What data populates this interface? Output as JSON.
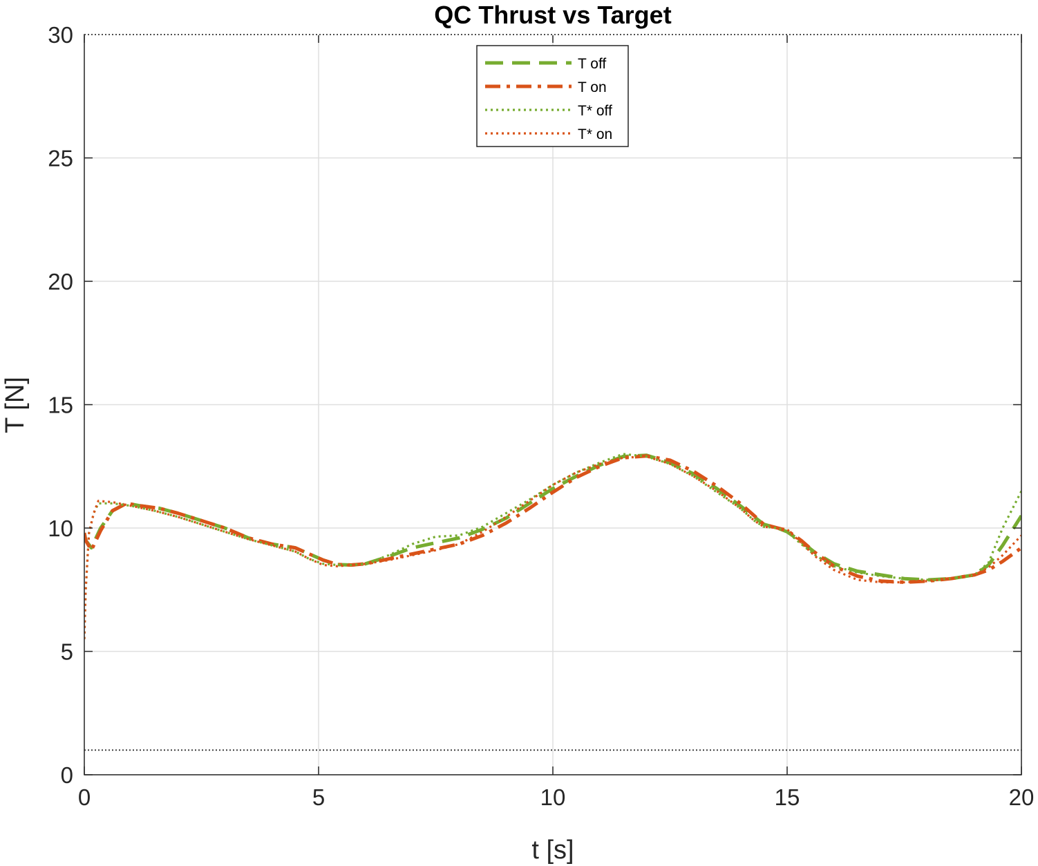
{
  "chart_data": {
    "type": "line",
    "title": "QC Thrust vs Target",
    "xlabel": "t [s]",
    "ylabel": "T [N]",
    "xlim": [
      0,
      20
    ],
    "ylim": [
      0,
      30
    ],
    "xticks": [
      "0",
      "5",
      "10",
      "15",
      "20"
    ],
    "yticks": [
      "0",
      "5",
      "10",
      "15",
      "20",
      "25",
      "30"
    ],
    "grid": true,
    "legend_position": "top-center",
    "reference_lines": [
      {
        "y": 30,
        "style": "dotted",
        "color": "#333333"
      },
      {
        "y": 1,
        "style": "dotted",
        "color": "#333333"
      }
    ],
    "series": [
      {
        "name": "T off",
        "color": "#77AC30",
        "dash": "dashed",
        "x": [
          0.0,
          0.03,
          0.15,
          0.35,
          0.6,
          0.9,
          1.2,
          1.6,
          2.0,
          2.5,
          3.0,
          3.5,
          4.0,
          4.5,
          4.8,
          5.1,
          5.4,
          5.7,
          6.0,
          6.5,
          7.0,
          7.5,
          8.0,
          8.5,
          9.0,
          9.5,
          10.0,
          10.5,
          11.0,
          11.5,
          12.0,
          12.5,
          13.0,
          13.5,
          14.0,
          14.3,
          14.5,
          14.8,
          15.0,
          15.3,
          15.6,
          16.0,
          16.5,
          17.0,
          17.5,
          18.0,
          18.5,
          19.0,
          19.3,
          19.6,
          20.0
        ],
        "y": [
          9.8,
          9.5,
          9.2,
          10.0,
          10.7,
          11.0,
          10.9,
          10.8,
          10.6,
          10.3,
          10.0,
          9.6,
          9.35,
          9.2,
          8.95,
          8.7,
          8.52,
          8.5,
          8.55,
          8.85,
          9.2,
          9.4,
          9.6,
          9.95,
          10.4,
          11.0,
          11.6,
          12.1,
          12.55,
          12.9,
          12.95,
          12.65,
          12.2,
          11.6,
          10.9,
          10.45,
          10.15,
          10.0,
          9.85,
          9.45,
          9.0,
          8.55,
          8.25,
          8.1,
          7.95,
          7.9,
          7.95,
          8.1,
          8.5,
          9.3,
          10.5
        ]
      },
      {
        "name": "T on",
        "color": "#D95319",
        "dash": "dashdot",
        "x": [
          0.0,
          0.03,
          0.15,
          0.35,
          0.6,
          0.9,
          1.2,
          1.6,
          2.0,
          2.5,
          3.0,
          3.5,
          4.0,
          4.5,
          4.8,
          5.1,
          5.4,
          5.7,
          6.0,
          6.5,
          7.0,
          7.5,
          8.0,
          8.5,
          9.0,
          9.5,
          10.0,
          10.5,
          11.0,
          11.5,
          12.0,
          12.5,
          13.0,
          13.5,
          14.0,
          14.3,
          14.5,
          14.8,
          15.0,
          15.3,
          15.6,
          16.0,
          16.5,
          17.0,
          17.5,
          18.0,
          18.5,
          19.0,
          19.3,
          19.6,
          20.0
        ],
        "y": [
          9.8,
          9.5,
          9.1,
          9.9,
          10.7,
          11.0,
          10.9,
          10.8,
          10.6,
          10.3,
          10.0,
          9.6,
          9.35,
          9.2,
          8.95,
          8.7,
          8.52,
          8.5,
          8.55,
          8.75,
          8.95,
          9.15,
          9.35,
          9.7,
          10.2,
          10.8,
          11.45,
          12.05,
          12.5,
          12.85,
          12.92,
          12.75,
          12.3,
          11.7,
          11.0,
          10.5,
          10.15,
          10.0,
          9.9,
          9.5,
          9.0,
          8.45,
          8.05,
          7.85,
          7.8,
          7.85,
          7.95,
          8.1,
          8.3,
          8.65,
          9.2
        ]
      },
      {
        "name": "T* off",
        "color": "#77AC30",
        "dash": "dotted",
        "x": [
          0.0,
          0.03,
          0.1,
          0.2,
          0.3,
          0.6,
          1.0,
          1.5,
          2.0,
          2.5,
          3.0,
          3.5,
          4.0,
          4.5,
          4.8,
          5.1,
          5.4,
          5.7,
          6.0,
          6.5,
          7.0,
          7.5,
          7.8,
          8.0,
          8.5,
          9.0,
          9.5,
          10.0,
          10.5,
          11.0,
          11.5,
          12.0,
          12.5,
          13.0,
          13.5,
          14.0,
          14.3,
          14.5,
          14.8,
          15.0,
          15.3,
          15.6,
          16.0,
          16.5,
          17.0,
          17.5,
          18.0,
          18.5,
          19.0,
          19.3,
          19.6,
          20.0
        ],
        "y": [
          5.5,
          7.5,
          9.8,
          10.6,
          11.0,
          11.0,
          10.9,
          10.7,
          10.45,
          10.15,
          9.85,
          9.55,
          9.3,
          9.05,
          8.75,
          8.55,
          8.5,
          8.5,
          8.55,
          8.9,
          9.35,
          9.65,
          9.68,
          9.7,
          10.05,
          10.6,
          11.15,
          11.75,
          12.25,
          12.65,
          13.0,
          12.9,
          12.6,
          12.1,
          11.45,
          10.8,
          10.3,
          10.05,
          10.0,
          9.85,
          9.35,
          8.9,
          8.45,
          8.2,
          8.05,
          7.95,
          7.9,
          7.95,
          8.1,
          8.6,
          10.0,
          11.5
        ]
      },
      {
        "name": "T* on",
        "color": "#D95319",
        "dash": "dotted",
        "x": [
          0.0,
          0.03,
          0.1,
          0.2,
          0.3,
          0.6,
          1.0,
          1.5,
          2.0,
          2.5,
          3.0,
          3.5,
          4.0,
          4.5,
          4.8,
          5.1,
          5.4,
          5.7,
          6.0,
          6.5,
          7.0,
          7.5,
          8.0,
          8.5,
          9.0,
          9.5,
          10.0,
          10.5,
          11.0,
          11.5,
          12.0,
          12.5,
          13.0,
          13.5,
          14.0,
          14.3,
          14.5,
          14.8,
          15.0,
          15.3,
          15.6,
          16.0,
          16.5,
          17.0,
          17.5,
          18.0,
          18.5,
          19.0,
          19.3,
          19.6,
          20.0
        ],
        "y": [
          5.5,
          7.5,
          9.8,
          10.6,
          11.1,
          11.05,
          10.9,
          10.7,
          10.45,
          10.15,
          9.85,
          9.55,
          9.3,
          9.05,
          8.75,
          8.5,
          8.45,
          8.5,
          8.55,
          8.7,
          8.9,
          9.1,
          9.35,
          9.85,
          10.45,
          11.1,
          11.75,
          12.25,
          12.6,
          12.85,
          12.9,
          12.6,
          12.1,
          11.5,
          10.8,
          10.3,
          10.05,
          10.0,
          9.95,
          9.4,
          8.85,
          8.3,
          7.9,
          7.8,
          7.8,
          7.85,
          7.95,
          8.1,
          8.4,
          8.9,
          9.7
        ]
      }
    ]
  }
}
